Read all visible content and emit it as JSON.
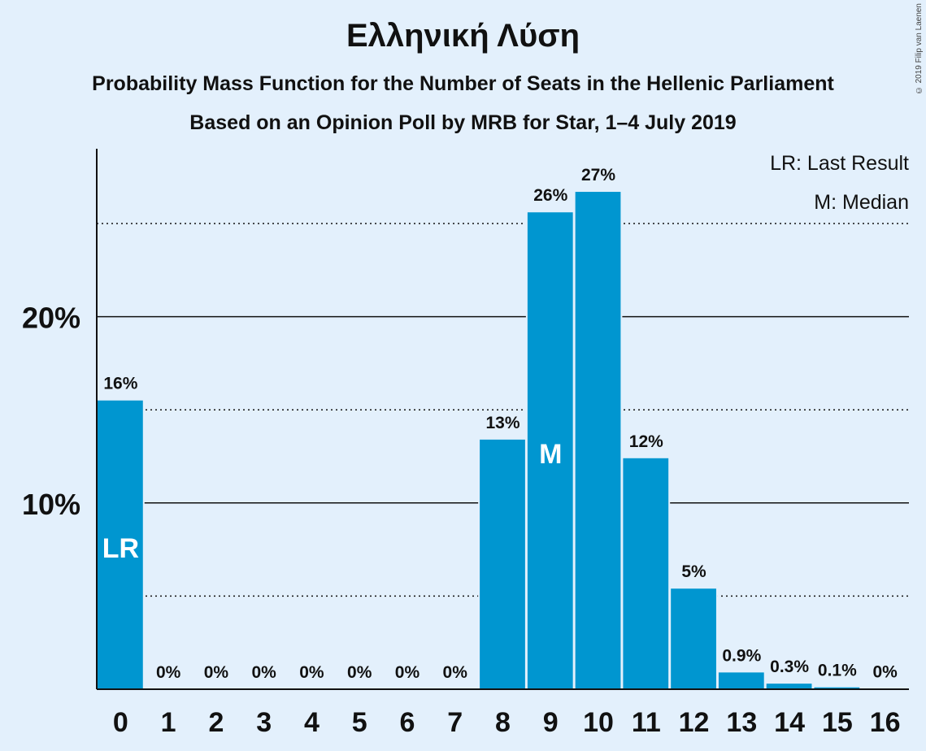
{
  "chart_data": {
    "type": "bar",
    "title": "Ελληνική Λύση",
    "subtitle_1": "Probability Mass Function for the Number of Seats in the Hellenic Parliament",
    "subtitle_2": "Based on an Opinion Poll by MRB for Star, 1–4 July 2019",
    "categories": [
      "0",
      "1",
      "2",
      "3",
      "4",
      "5",
      "6",
      "7",
      "8",
      "9",
      "10",
      "11",
      "12",
      "13",
      "14",
      "15",
      "16"
    ],
    "values": [
      15.5,
      0,
      0,
      0,
      0,
      0,
      0,
      0,
      13.4,
      25.6,
      26.7,
      12.4,
      5.4,
      0.9,
      0.3,
      0.1,
      0.02
    ],
    "data_labels": [
      "16%",
      "0%",
      "0%",
      "0%",
      "0%",
      "0%",
      "0%",
      "0%",
      "13%",
      "26%",
      "27%",
      "12%",
      "5%",
      "0.9%",
      "0.3%",
      "0.1%",
      "0%"
    ],
    "ylim": [
      0,
      29
    ],
    "yticks": [
      {
        "value": 10,
        "label": "10%"
      },
      {
        "value": 20,
        "label": "20%"
      }
    ],
    "minor_gridlines": [
      5,
      15,
      25
    ],
    "bar_markers": [
      {
        "category": "0",
        "text": "LR"
      },
      {
        "category": "9",
        "text": "M"
      }
    ],
    "legend": [
      "LR: Last Result",
      "M: Median"
    ],
    "legend_position": "top-right",
    "bar_color": "#0096d0",
    "background": "#e3f0fc",
    "grid": true
  },
  "copyright": "© 2019 Filip van Laenen"
}
